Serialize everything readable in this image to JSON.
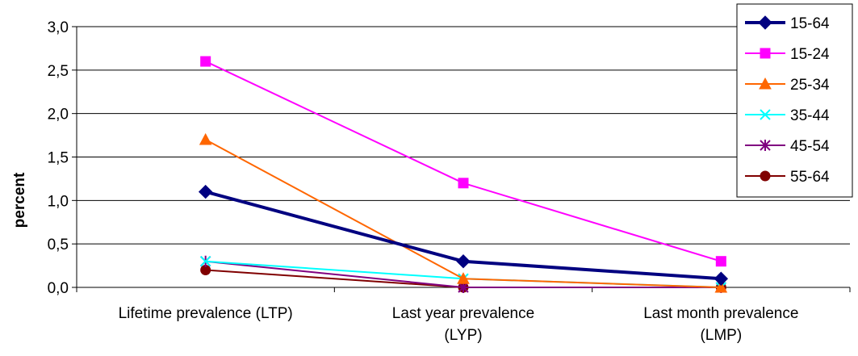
{
  "chart_data": {
    "type": "line",
    "title": "",
    "xlabel": "",
    "ylabel": "percent",
    "categories": [
      [
        "Lifetime prevalence (LTP)"
      ],
      [
        "Last year prevalence",
        "(LYP)"
      ],
      [
        "Last month prevalence",
        "(LMP)"
      ]
    ],
    "yticks": [
      "0,0",
      "0,5",
      "1,0",
      "1,5",
      "2,0",
      "2,5",
      "3,0"
    ],
    "ylim": [
      0,
      3
    ],
    "grid": "horizontal",
    "legend_position": "right",
    "series": [
      {
        "name": "15-64",
        "values": [
          1.1,
          0.3,
          0.1
        ],
        "color": "#000080",
        "marker": "diamond",
        "width": 4
      },
      {
        "name": "15-24",
        "values": [
          2.6,
          1.2,
          0.3
        ],
        "color": "#ff00ff",
        "marker": "square",
        "width": 2
      },
      {
        "name": "25-34",
        "values": [
          1.7,
          0.1,
          0.0
        ],
        "color": "#ff6600",
        "marker": "triangle",
        "width": 2
      },
      {
        "name": "35-44",
        "values": [
          0.3,
          0.1,
          0.0
        ],
        "color": "#00ffff",
        "marker": "x",
        "width": 2
      },
      {
        "name": "45-54",
        "values": [
          0.3,
          0.0,
          0.0
        ],
        "color": "#800080",
        "marker": "star",
        "width": 2
      },
      {
        "name": "55-64",
        "values": [
          0.2,
          0.0,
          0.0
        ],
        "color": "#800000",
        "marker": "circle",
        "width": 2
      }
    ]
  }
}
